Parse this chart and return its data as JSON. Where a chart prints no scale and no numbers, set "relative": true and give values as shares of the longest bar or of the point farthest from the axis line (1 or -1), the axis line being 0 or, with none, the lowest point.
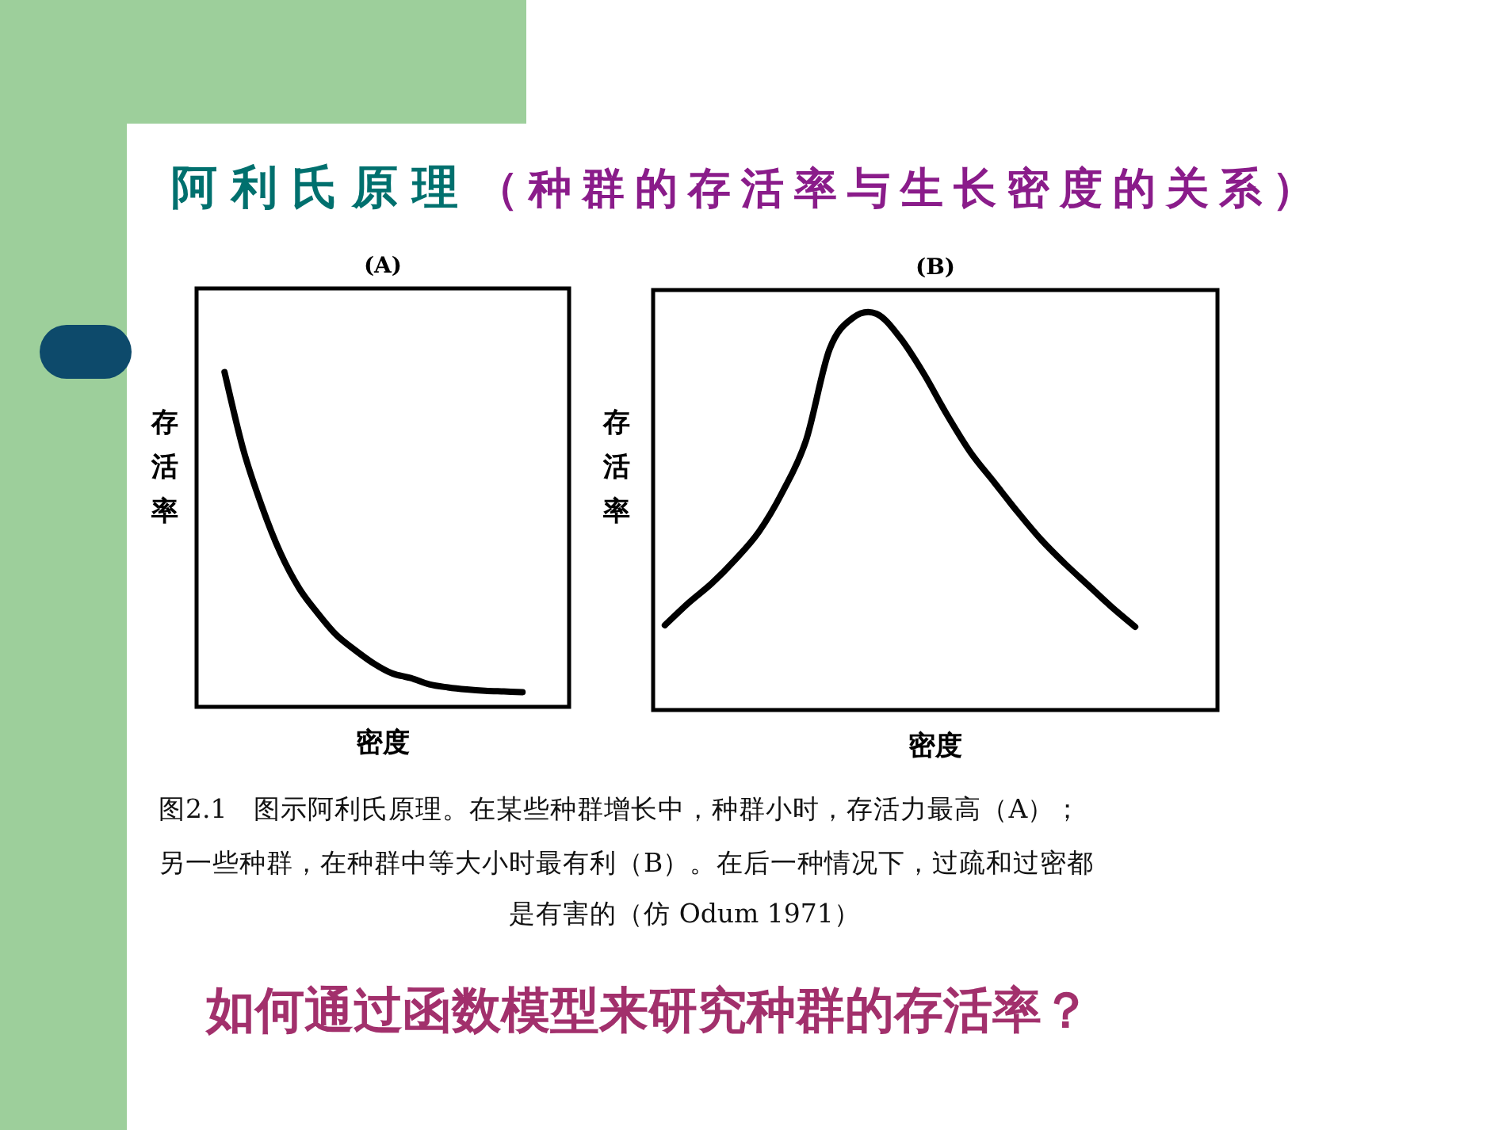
{
  "chart_data": [
    {
      "type": "other",
      "title": "阿利氏原理",
      "subtitle": "（种群的存活率与生长密度的关系）",
      "annotations": [
        "图2.1　图示阿利氏原理。在某些种群增长中，种群小时，存活力最高（A）；",
        "另一些种群，在种群中等大小时最有利（B）。在后一种情况下，过疏和过密都",
        "是有害的（仿 Odum 1971）",
        "如何通过函数模型来研究种群的存活率？"
      ]
    },
    {
      "type": "line",
      "title": "(A)",
      "xlabel": "密度",
      "ylabel": "存活率",
      "relative": true,
      "color": "#000000",
      "categories": [
        null,
        null,
        null,
        null,
        null,
        null,
        null,
        null,
        null,
        null,
        null,
        null,
        null,
        null,
        null,
        null,
        null,
        null,
        null,
        null
      ],
      "values": [
        null,
        1,
        0.77,
        0.6,
        0.46,
        0.355,
        0.28,
        0.215,
        0.17,
        0.13,
        0.1,
        0.086,
        0.067,
        0.058,
        0.052,
        0.048,
        0.046,
        0.044,
        null,
        null
      ]
    },
    {
      "type": "line",
      "title": "(B)",
      "xlabel": "密度",
      "ylabel": "存活率",
      "relative": true,
      "color": "#000000",
      "categories": [
        null,
        null,
        null,
        null,
        null,
        null,
        null,
        null,
        null,
        null,
        null,
        null,
        null,
        null,
        null,
        null,
        null,
        null,
        null,
        null,
        null,
        null,
        null,
        null
      ],
      "values": [
        0.214,
        0.27,
        0.32,
        0.38,
        0.45,
        0.55,
        0.68,
        0.91,
        0.99,
        1,
        0.94,
        0.85,
        0.745,
        0.65,
        0.575,
        0.5,
        0.43,
        0.37,
        0.315,
        0.26,
        0.21,
        null,
        null,
        null
      ]
    }
  ]
}
